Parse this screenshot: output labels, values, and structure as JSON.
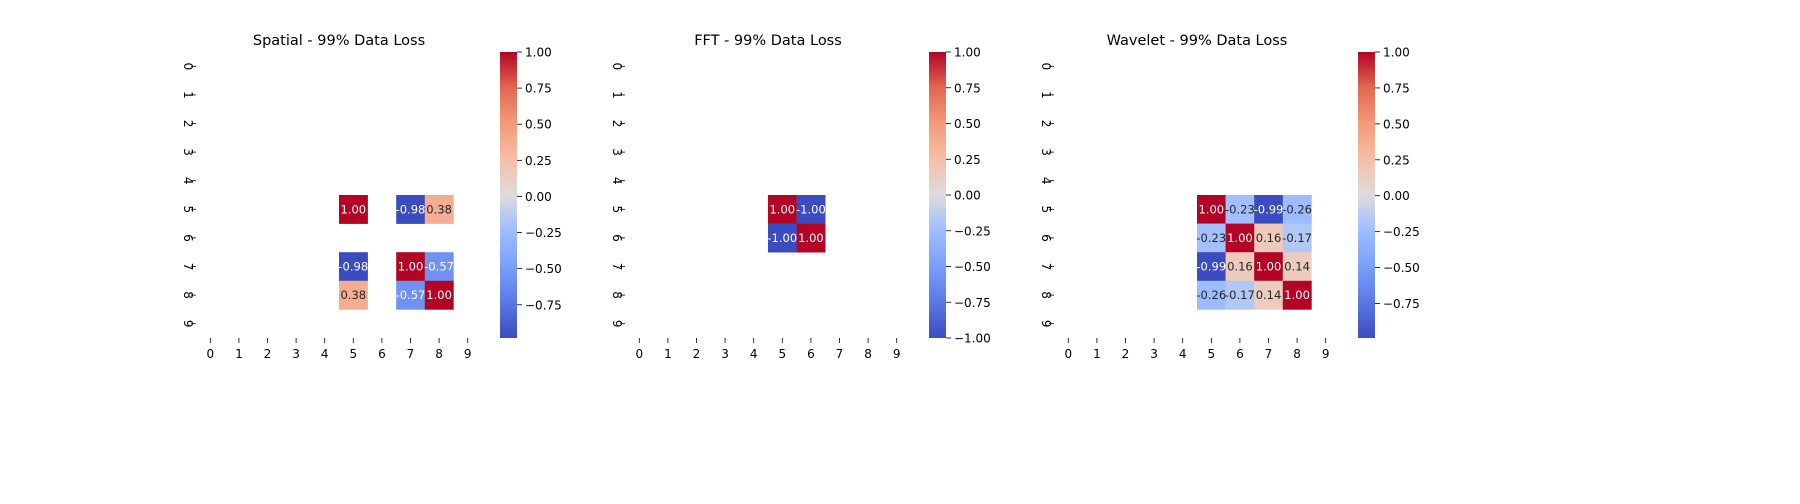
{
  "chart_data": [
    {
      "type": "heatmap",
      "title": "Spatial - 99% Data Loss",
      "xlabel": "",
      "ylabel": "",
      "x_categories": [
        "0",
        "1",
        "2",
        "3",
        "4",
        "5",
        "6",
        "7",
        "8",
        "9"
      ],
      "y_categories": [
        "0",
        "1",
        "2",
        "3",
        "4",
        "5",
        "6",
        "7",
        "8",
        "9"
      ],
      "cells": [
        {
          "row": 5,
          "col": 5,
          "value": 1.0,
          "label": "1.00"
        },
        {
          "row": 5,
          "col": 7,
          "value": -0.98,
          "label": "-0.98"
        },
        {
          "row": 5,
          "col": 8,
          "value": 0.38,
          "label": "0.38"
        },
        {
          "row": 7,
          "col": 5,
          "value": -0.98,
          "label": "-0.98"
        },
        {
          "row": 7,
          "col": 7,
          "value": 1.0,
          "label": "1.00"
        },
        {
          "row": 7,
          "col": 8,
          "value": -0.57,
          "label": "-0.57"
        },
        {
          "row": 8,
          "col": 5,
          "value": 0.38,
          "label": "0.38"
        },
        {
          "row": 8,
          "col": 7,
          "value": -0.57,
          "label": "-0.57"
        },
        {
          "row": 8,
          "col": 8,
          "value": 1.0,
          "label": "1.00"
        }
      ],
      "colorbar": {
        "colormap": "coolwarm",
        "vmin": -0.98,
        "vmax": 1.0,
        "ticks": [
          1.0,
          0.75,
          0.5,
          0.25,
          0.0,
          -0.25,
          -0.5,
          -0.75
        ],
        "tick_labels": [
          "1.00",
          "0.75",
          "0.50",
          "0.25",
          "0.00",
          "−0.25",
          "−0.50",
          "−0.75"
        ]
      }
    },
    {
      "type": "heatmap",
      "title": "FFT - 99% Data Loss",
      "xlabel": "",
      "ylabel": "",
      "x_categories": [
        "0",
        "1",
        "2",
        "3",
        "4",
        "5",
        "6",
        "7",
        "8",
        "9"
      ],
      "y_categories": [
        "0",
        "1",
        "2",
        "3",
        "4",
        "5",
        "6",
        "7",
        "8",
        "9"
      ],
      "cells": [
        {
          "row": 5,
          "col": 5,
          "value": 1.0,
          "label": "1.00"
        },
        {
          "row": 5,
          "col": 6,
          "value": -1.0,
          "label": "-1.00"
        },
        {
          "row": 6,
          "col": 5,
          "value": -1.0,
          "label": "-1.00"
        },
        {
          "row": 6,
          "col": 6,
          "value": 1.0,
          "label": "1.00"
        }
      ],
      "colorbar": {
        "colormap": "coolwarm",
        "vmin": -1.0,
        "vmax": 1.0,
        "ticks": [
          1.0,
          0.75,
          0.5,
          0.25,
          0.0,
          -0.25,
          -0.5,
          -0.75,
          -1.0
        ],
        "tick_labels": [
          "1.00",
          "0.75",
          "0.50",
          "0.25",
          "0.00",
          "−0.25",
          "−0.50",
          "−0.75",
          "−1.00"
        ]
      }
    },
    {
      "type": "heatmap",
      "title": "Wavelet - 99% Data Loss",
      "xlabel": "",
      "ylabel": "",
      "x_categories": [
        "0",
        "1",
        "2",
        "3",
        "4",
        "5",
        "6",
        "7",
        "8",
        "9"
      ],
      "y_categories": [
        "0",
        "1",
        "2",
        "3",
        "4",
        "5",
        "6",
        "7",
        "8",
        "9"
      ],
      "cells": [
        {
          "row": 5,
          "col": 5,
          "value": 1.0,
          "label": "1.00"
        },
        {
          "row": 5,
          "col": 6,
          "value": -0.23,
          "label": "-0.23"
        },
        {
          "row": 5,
          "col": 7,
          "value": -0.99,
          "label": "-0.99"
        },
        {
          "row": 5,
          "col": 8,
          "value": -0.26,
          "label": "-0.26"
        },
        {
          "row": 6,
          "col": 5,
          "value": -0.23,
          "label": "-0.23"
        },
        {
          "row": 6,
          "col": 6,
          "value": 1.0,
          "label": "1.00"
        },
        {
          "row": 6,
          "col": 7,
          "value": 0.16,
          "label": "0.16"
        },
        {
          "row": 6,
          "col": 8,
          "value": -0.17,
          "label": "-0.17"
        },
        {
          "row": 7,
          "col": 5,
          "value": -0.99,
          "label": "-0.99"
        },
        {
          "row": 7,
          "col": 6,
          "value": 0.16,
          "label": "0.16"
        },
        {
          "row": 7,
          "col": 7,
          "value": 1.0,
          "label": "1.00"
        },
        {
          "row": 7,
          "col": 8,
          "value": 0.14,
          "label": "0.14"
        },
        {
          "row": 8,
          "col": 5,
          "value": -0.26,
          "label": "-0.26"
        },
        {
          "row": 8,
          "col": 6,
          "value": -0.17,
          "label": "-0.17"
        },
        {
          "row": 8,
          "col": 7,
          "value": 0.14,
          "label": "0.14"
        },
        {
          "row": 8,
          "col": 8,
          "value": 1.0,
          "label": "1.00"
        }
      ],
      "colorbar": {
        "colormap": "coolwarm",
        "vmin": -0.99,
        "vmax": 1.0,
        "ticks": [
          1.0,
          0.75,
          0.5,
          0.25,
          0.0,
          -0.25,
          -0.5,
          -0.75
        ],
        "tick_labels": [
          "1.00",
          "0.75",
          "0.50",
          "0.25",
          "0.00",
          "−0.25",
          "−0.50",
          "−0.75"
        ]
      }
    }
  ]
}
